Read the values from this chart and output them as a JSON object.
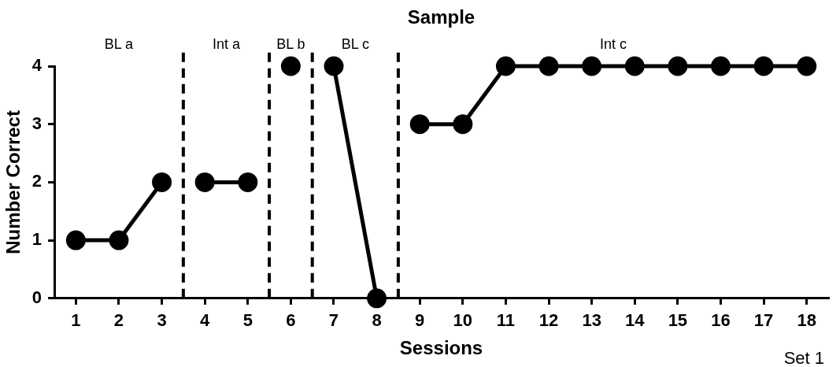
{
  "chart_data": {
    "type": "line",
    "title": "Sample",
    "xlabel": "Sessions",
    "ylabel": "Number Correct",
    "xlim": [
      0.5,
      18.5
    ],
    "xticks": [
      1,
      2,
      3,
      4,
      5,
      6,
      7,
      8,
      9,
      10,
      11,
      12,
      13,
      14,
      15,
      16,
      17,
      18
    ],
    "ylim": [
      0,
      4
    ],
    "yticks": [
      0,
      1,
      2,
      3,
      4
    ],
    "grid": false,
    "legend": false,
    "marker": "circle",
    "line_style": "solid",
    "series": [
      {
        "color": "#000000",
        "x": [
          1,
          2,
          3
        ],
        "values": [
          1,
          1,
          2
        ]
      },
      {
        "color": "#000000",
        "x": [
          4,
          5
        ],
        "values": [
          2,
          2
        ]
      },
      {
        "color": "#000000",
        "x": [
          6
        ],
        "values": [
          4
        ]
      },
      {
        "color": "#000000",
        "x": [
          7,
          8
        ],
        "values": [
          4,
          0
        ]
      },
      {
        "color": "#000000",
        "x": [
          9,
          10,
          11,
          12,
          13,
          14,
          15,
          16,
          17,
          18
        ],
        "values": [
          3,
          3,
          4,
          4,
          4,
          4,
          4,
          4,
          4,
          4
        ]
      }
    ],
    "ref_lines": [
      {
        "axis": "x",
        "value": 3.5,
        "color": "#000000",
        "line_style": "dashed"
      },
      {
        "axis": "x",
        "value": 5.5,
        "color": "#000000",
        "line_style": "dashed"
      },
      {
        "axis": "x",
        "value": 6.5,
        "color": "#000000",
        "line_style": "dashed"
      },
      {
        "axis": "x",
        "value": 8.5,
        "color": "#000000",
        "line_style": "dashed"
      }
    ],
    "annotations": [
      "BL a",
      "Int a",
      "BL b",
      "BL c",
      "Int c",
      "Set 1"
    ]
  }
}
